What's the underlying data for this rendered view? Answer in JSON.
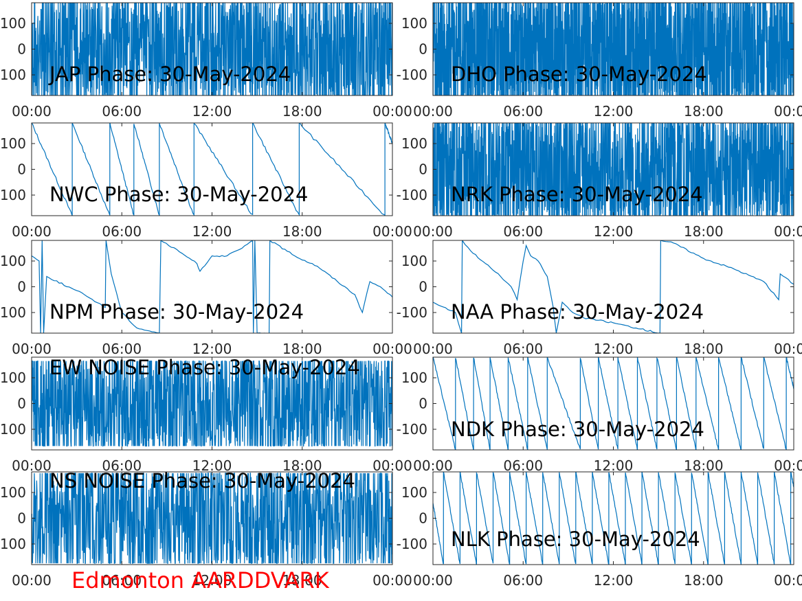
{
  "footer_label": "Edmonton AARDDVARK",
  "colors": {
    "line": "#0072bd",
    "axis": "#262626",
    "footer": "#ff0000"
  },
  "chart_data": [
    {
      "type": "line",
      "title": "JAP Phase: 30-May-2024",
      "x_ticks": [
        "00:00",
        "06:00",
        "12:00",
        "18:00",
        "00:00"
      ],
      "y_ticks": [
        "100",
        "0",
        "-100"
      ],
      "ylim": [
        -180,
        180
      ],
      "xlim_hours": [
        0,
        24
      ],
      "pattern": "noise",
      "noise": {
        "amp": 180,
        "freq": 260,
        "seed": 1
      }
    },
    {
      "type": "line",
      "title": "DHO Phase: 30-May-2024",
      "x_ticks": [
        "00:00",
        "06:00",
        "12:00",
        "18:00",
        "00:00"
      ],
      "y_ticks": [
        "100",
        "0",
        "-100"
      ],
      "ylim": [
        -180,
        180
      ],
      "xlim_hours": [
        0,
        24
      ],
      "pattern": "noise",
      "noise": {
        "amp": 180,
        "freq": 420,
        "seed": 2
      }
    },
    {
      "type": "line",
      "title": "NWC Phase: 30-May-2024",
      "x_ticks": [
        "00:00",
        "06:00",
        "12:00",
        "18:00",
        "00:00"
      ],
      "y_ticks": [
        "100",
        "0",
        "-100"
      ],
      "ylim": [
        -180,
        180
      ],
      "xlim_hours": [
        0,
        24
      ],
      "pattern": "sawtooth",
      "segments": [
        {
          "x0": 0,
          "y0": 180,
          "x1": 2.7,
          "y1": -180
        },
        {
          "x0": 2.7,
          "y0": 180,
          "x1": 5.2,
          "y1": -180
        },
        {
          "x0": 5.2,
          "y0": 180,
          "x1": 6.8,
          "y1": -180
        },
        {
          "x0": 6.8,
          "y0": 180,
          "x1": 8.5,
          "y1": -180
        },
        {
          "x0": 8.5,
          "y0": 180,
          "x1": 10.8,
          "y1": -180
        },
        {
          "x0": 10.8,
          "y0": 180,
          "x1": 14.7,
          "y1": -180
        },
        {
          "x0": 14.7,
          "y0": 180,
          "x1": 17.8,
          "y1": -180
        },
        {
          "x0": 17.8,
          "y0": 180,
          "x1": 23.5,
          "y1": -180
        },
        {
          "x0": 23.5,
          "y0": 180,
          "x1": 24,
          "y1": 100
        }
      ]
    },
    {
      "type": "line",
      "title": "NRK Phase: 30-May-2024",
      "x_ticks": [
        "00:00",
        "06:00",
        "12:00",
        "18:00",
        "00:00"
      ],
      "y_ticks": [
        "100",
        "0",
        "-100"
      ],
      "ylim": [
        -180,
        180
      ],
      "xlim_hours": [
        0,
        24
      ],
      "pattern": "noise",
      "noise": {
        "amp": 180,
        "freq": 300,
        "seed": 3
      }
    },
    {
      "type": "line",
      "title": "NPM Phase: 30-May-2024",
      "x_ticks": [
        "00:00",
        "06:00",
        "12:00",
        "18:00",
        "00:00"
      ],
      "y_ticks": [
        "100",
        "0",
        "-100"
      ],
      "ylim": [
        -180,
        180
      ],
      "xlim_hours": [
        0,
        24
      ],
      "pattern": "polyline",
      "points": [
        [
          0,
          120
        ],
        [
          0.5,
          100
        ],
        [
          0.6,
          -180
        ],
        [
          0.7,
          180
        ],
        [
          0.8,
          -180
        ],
        [
          1.0,
          40
        ],
        [
          3.5,
          -30
        ],
        [
          4.9,
          -80
        ],
        [
          4.95,
          180
        ],
        [
          5.3,
          50
        ],
        [
          6.0,
          -100
        ],
        [
          7.0,
          -160
        ],
        [
          8.5,
          -180
        ],
        [
          8.6,
          180
        ],
        [
          10,
          130
        ],
        [
          11.0,
          90
        ],
        [
          11.2,
          60
        ],
        [
          12.0,
          120
        ],
        [
          13.0,
          120
        ],
        [
          14.0,
          150
        ],
        [
          14.7,
          180
        ],
        [
          14.75,
          -180
        ],
        [
          14.85,
          180
        ],
        [
          15.0,
          -180
        ],
        [
          15.8,
          -180
        ],
        [
          15.85,
          180
        ],
        [
          17.5,
          120
        ],
        [
          19,
          80
        ],
        [
          21.5,
          -30
        ],
        [
          22.0,
          -100
        ],
        [
          22.5,
          20
        ],
        [
          23.2,
          0
        ],
        [
          24,
          -40
        ]
      ]
    },
    {
      "type": "line",
      "title": "NAA Phase: 30-May-2024",
      "x_ticks": [
        "00:00",
        "06:00",
        "12:00",
        "18:00",
        "00:00"
      ],
      "y_ticks": [
        "100",
        "0",
        "-100"
      ],
      "ylim": [
        -180,
        180
      ],
      "xlim_hours": [
        0,
        24
      ],
      "pattern": "polyline",
      "points": [
        [
          0,
          -60
        ],
        [
          1.5,
          -100
        ],
        [
          1.9,
          -180
        ],
        [
          1.95,
          180
        ],
        [
          2.5,
          140
        ],
        [
          3.5,
          90
        ],
        [
          4.5,
          40
        ],
        [
          5.2,
          0
        ],
        [
          5.6,
          -50
        ],
        [
          6.0,
          100
        ],
        [
          6.2,
          160
        ],
        [
          6.5,
          120
        ],
        [
          7.0,
          100
        ],
        [
          7.6,
          40
        ],
        [
          8.0,
          -80
        ],
        [
          8.2,
          -180
        ],
        [
          8.6,
          -60
        ],
        [
          9.3,
          -100
        ],
        [
          10,
          -120
        ],
        [
          12,
          -140
        ],
        [
          13.5,
          -160
        ],
        [
          15.1,
          -180
        ],
        [
          15.15,
          180
        ],
        [
          16,
          170
        ],
        [
          18,
          110
        ],
        [
          20,
          70
        ],
        [
          22,
          20
        ],
        [
          23,
          -50
        ],
        [
          23.1,
          50
        ],
        [
          24,
          10
        ]
      ]
    },
    {
      "type": "line",
      "title": "EW NOISE Phase: 30-May-2024",
      "x_ticks": [
        "00:00",
        "06:00",
        "12:00",
        "18:00",
        "00:00"
      ],
      "y_ticks": [
        "100",
        "0",
        "-100"
      ],
      "ylim": [
        -180,
        180
      ],
      "xlim_hours": [
        0,
        24
      ],
      "pattern": "noise",
      "noise": {
        "amp": 160,
        "freq": 220,
        "seed": 4
      }
    },
    {
      "type": "line",
      "title": "NDK Phase: 30-May-2024",
      "x_ticks": [
        "00:00",
        "06:00",
        "12:00",
        "18:00",
        "00:00"
      ],
      "y_ticks": [
        "100",
        "0",
        "-100"
      ],
      "ylim": [
        -180,
        180
      ],
      "xlim_hours": [
        0,
        24
      ],
      "pattern": "sawtooth",
      "segments": [
        {
          "x0": 0,
          "y0": 180,
          "x1": 1.5,
          "y1": -180
        },
        {
          "x0": 1.5,
          "y0": 180,
          "x1": 2.7,
          "y1": -180
        },
        {
          "x0": 2.7,
          "y0": 180,
          "x1": 3.8,
          "y1": -180
        },
        {
          "x0": 3.8,
          "y0": 180,
          "x1": 5.0,
          "y1": -180
        },
        {
          "x0": 5.0,
          "y0": 180,
          "x1": 6.3,
          "y1": -180
        },
        {
          "x0": 6.3,
          "y0": 180,
          "x1": 7.6,
          "y1": -180
        },
        {
          "x0": 7.6,
          "y0": 180,
          "x1": 9.8,
          "y1": -180
        },
        {
          "x0": 9.8,
          "y0": 180,
          "x1": 11.0,
          "y1": -180
        },
        {
          "x0": 11.0,
          "y0": 180,
          "x1": 12.3,
          "y1": -180
        },
        {
          "x0": 12.3,
          "y0": 180,
          "x1": 13.6,
          "y1": -180
        },
        {
          "x0": 13.6,
          "y0": 180,
          "x1": 14.9,
          "y1": -180
        },
        {
          "x0": 14.9,
          "y0": 180,
          "x1": 16.2,
          "y1": -180
        },
        {
          "x0": 16.2,
          "y0": 180,
          "x1": 17.5,
          "y1": -180
        },
        {
          "x0": 17.5,
          "y0": 180,
          "x1": 19.0,
          "y1": -180
        },
        {
          "x0": 19.0,
          "y0": 180,
          "x1": 20.5,
          "y1": -180
        },
        {
          "x0": 20.5,
          "y0": 180,
          "x1": 22.0,
          "y1": -180
        },
        {
          "x0": 22.0,
          "y0": 180,
          "x1": 23.5,
          "y1": -180
        },
        {
          "x0": 23.5,
          "y0": 180,
          "x1": 24,
          "y1": 60
        }
      ]
    },
    {
      "type": "line",
      "title": "NS NOISE Phase: 30-May-2024",
      "x_ticks": [
        "00:00",
        "06:00",
        "12:00",
        "18:00",
        "00:00"
      ],
      "y_ticks": [
        "100",
        "0",
        "-100"
      ],
      "ylim": [
        -180,
        180
      ],
      "xlim_hours": [
        0,
        24
      ],
      "pattern": "noise",
      "noise": {
        "amp": 170,
        "freq": 200,
        "seed": 5
      }
    },
    {
      "type": "line",
      "title": "NLK Phase: 30-May-2024",
      "x_ticks": [
        "00:00",
        "06:00",
        "12:00",
        "18:00",
        "00:00"
      ],
      "y_ticks": [
        "100",
        "0",
        "-100"
      ],
      "ylim": [
        -180,
        180
      ],
      "xlim_hours": [
        0,
        24
      ],
      "pattern": "sawtooth",
      "segments": [
        {
          "x0": 0,
          "y0": 60,
          "x1": 0.7,
          "y1": -180
        },
        {
          "x0": 0.7,
          "y0": 180,
          "x1": 1.8,
          "y1": -180
        },
        {
          "x0": 1.8,
          "y0": 180,
          "x1": 2.9,
          "y1": -180
        },
        {
          "x0": 2.9,
          "y0": 180,
          "x1": 4.0,
          "y1": -180
        },
        {
          "x0": 4.0,
          "y0": 180,
          "x1": 5.1,
          "y1": -180
        },
        {
          "x0": 5.1,
          "y0": 180,
          "x1": 6.2,
          "y1": -180
        },
        {
          "x0": 6.2,
          "y0": 180,
          "x1": 7.3,
          "y1": -180
        },
        {
          "x0": 7.3,
          "y0": 180,
          "x1": 8.4,
          "y1": -180
        },
        {
          "x0": 8.4,
          "y0": 180,
          "x1": 9.5,
          "y1": -180
        },
        {
          "x0": 9.5,
          "y0": 180,
          "x1": 10.6,
          "y1": -180
        },
        {
          "x0": 10.6,
          "y0": 180,
          "x1": 11.7,
          "y1": -180
        },
        {
          "x0": 11.7,
          "y0": 180,
          "x1": 12.8,
          "y1": -180
        },
        {
          "x0": 12.8,
          "y0": 180,
          "x1": 13.9,
          "y1": -180
        },
        {
          "x0": 13.9,
          "y0": 180,
          "x1": 15.0,
          "y1": -180
        },
        {
          "x0": 15.0,
          "y0": 180,
          "x1": 16.1,
          "y1": -180
        },
        {
          "x0": 16.1,
          "y0": 180,
          "x1": 17.2,
          "y1": -180
        },
        {
          "x0": 17.2,
          "y0": 180,
          "x1": 18.3,
          "y1": -180
        },
        {
          "x0": 18.3,
          "y0": 180,
          "x1": 19.4,
          "y1": -180
        },
        {
          "x0": 19.4,
          "y0": 180,
          "x1": 20.5,
          "y1": -180
        },
        {
          "x0": 20.5,
          "y0": 180,
          "x1": 21.6,
          "y1": -180
        },
        {
          "x0": 21.6,
          "y0": 180,
          "x1": 22.7,
          "y1": -180
        },
        {
          "x0": 22.7,
          "y0": 180,
          "x1": 23.8,
          "y1": -180
        },
        {
          "x0": 23.8,
          "y0": 180,
          "x1": 24,
          "y1": 120
        }
      ]
    }
  ]
}
